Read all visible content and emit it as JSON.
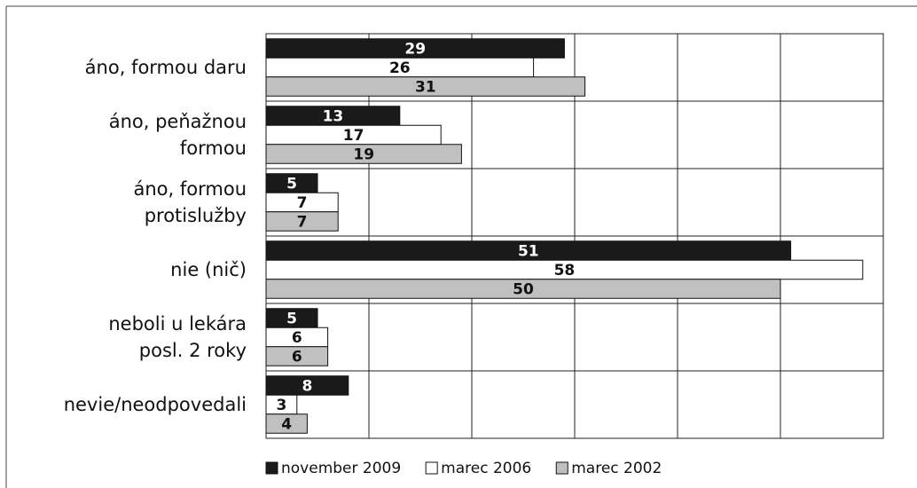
{
  "chart_data": {
    "type": "hbar",
    "categories": [
      "áno, formou daru",
      "áno, peňažnou\nformou",
      "áno, formou\nprotislužby",
      "nie (nič)",
      "neboli u lekára\nposl. 2 roky",
      "nevie/neodpovedali"
    ],
    "series": [
      {
        "name": "november 2009",
        "color": "#1a1a1a",
        "values": [
          29,
          13,
          5,
          51,
          5,
          8
        ]
      },
      {
        "name": "marec 2006",
        "color": "#ffffff",
        "values": [
          26,
          17,
          7,
          58,
          6,
          3
        ]
      },
      {
        "name": "marec 2002",
        "color": "#c0c0c0",
        "values": [
          31,
          19,
          7,
          50,
          6,
          4
        ]
      }
    ],
    "xlim": [
      0,
      60
    ],
    "xticks": [
      0,
      10,
      20,
      30,
      40,
      50,
      60
    ],
    "grid": true,
    "legend": "bottom"
  }
}
